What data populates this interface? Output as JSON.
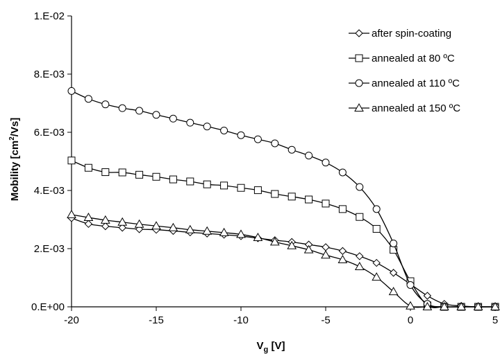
{
  "chart_data": {
    "type": "line",
    "title": "",
    "xlabel": {
      "main": "V",
      "sub": "g",
      "rest": " [V]"
    },
    "ylabel": {
      "main": "Mobility [cm",
      "sup": "2",
      "rest": "/Vs]"
    },
    "xlim": [
      -20,
      5
    ],
    "ylim": [
      0,
      0.01
    ],
    "x_ticks": [
      {
        "value": -20,
        "label": "-20"
      },
      {
        "value": -15,
        "label": "-15"
      },
      {
        "value": -10,
        "label": "-10"
      },
      {
        "value": -5,
        "label": "-5"
      },
      {
        "value": 0,
        "label": "0"
      },
      {
        "value": 5,
        "label": "5"
      }
    ],
    "y_ticks": [
      {
        "value": 0,
        "label": "0.E+00"
      },
      {
        "value": 0.002,
        "label": "2.E-03"
      },
      {
        "value": 0.004,
        "label": "4.E-03"
      },
      {
        "value": 0.006,
        "label": "6.E-03"
      },
      {
        "value": 0.008,
        "label": "8.E-03"
      },
      {
        "value": 0.01,
        "label": "1.E-02"
      }
    ],
    "grid": false,
    "legend_position": "top-right",
    "x": [
      -20,
      -19,
      -18,
      -17,
      -16,
      -15,
      -14,
      -13,
      -12,
      -11,
      -10,
      -9,
      -8,
      -7,
      -6,
      -5,
      -4,
      -3,
      -2,
      -1,
      0,
      1,
      2,
      3,
      4,
      5
    ],
    "series": [
      {
        "name": "after spin-coating",
        "marker": "diamond",
        "values": [
          0.00305,
          0.00285,
          0.00277,
          0.00272,
          0.00267,
          0.00265,
          0.00261,
          0.00256,
          0.00252,
          0.00248,
          0.00243,
          0.00236,
          0.00229,
          0.00223,
          0.00214,
          0.00205,
          0.00192,
          0.00174,
          0.00151,
          0.00117,
          0.00078,
          0.00038,
          0.0001,
          3e-05,
          0.0,
          0.0
        ]
      },
      {
        "name": "annealed at 80 ºC",
        "marker": "square",
        "values": [
          0.00503,
          0.00478,
          0.00463,
          0.00462,
          0.00454,
          0.00447,
          0.00438,
          0.00431,
          0.00421,
          0.00417,
          0.00409,
          0.00401,
          0.00388,
          0.00379,
          0.00369,
          0.00355,
          0.00336,
          0.00309,
          0.00268,
          0.00196,
          0.00088,
          5e-05,
          0.0,
          0.0,
          0.0,
          0.0
        ]
      },
      {
        "name": "annealed at 110 ºC",
        "marker": "circle",
        "values": [
          0.00742,
          0.00715,
          0.00696,
          0.00683,
          0.00674,
          0.0066,
          0.00647,
          0.00633,
          0.0062,
          0.00606,
          0.0059,
          0.00576,
          0.00562,
          0.0054,
          0.0052,
          0.00496,
          0.00462,
          0.00412,
          0.00336,
          0.00218,
          0.00075,
          0.0001,
          0.0,
          0.0,
          0.0,
          0.0
        ]
      },
      {
        "name": "annealed at 150 ºC",
        "marker": "triangle",
        "values": [
          0.00317,
          0.00307,
          0.00298,
          0.00291,
          0.00284,
          0.00278,
          0.00272,
          0.00265,
          0.0026,
          0.00255,
          0.00249,
          0.00238,
          0.00223,
          0.0021,
          0.00196,
          0.00178,
          0.00162,
          0.00138,
          0.00102,
          0.00052,
          3e-05,
          0.0,
          0.0,
          0.0,
          0.0,
          0.0
        ]
      }
    ]
  }
}
